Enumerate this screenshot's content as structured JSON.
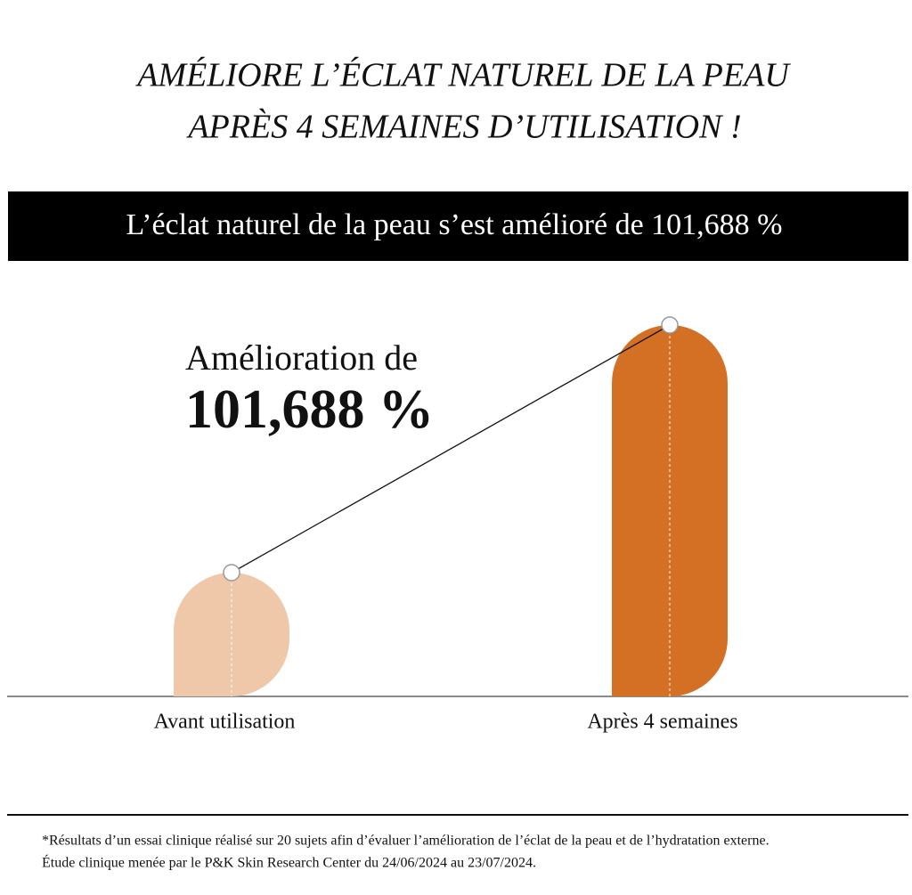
{
  "chart_data": {
    "type": "bar",
    "title": [
      "AMÉLIORE L’ÉCLAT NATUREL DE LA PEAU",
      "APRÈS 4 SEMAINES D’UTILISATION !"
    ],
    "subtitle": "L’éclat naturel de la peau s’est amélioré de 101,688 %",
    "annotation": [
      "Amélioration de",
      "101,688 %"
    ],
    "categories": [
      "Avant utilisation",
      "Après 4 semaines"
    ],
    "values": [
      1,
      3
    ],
    "colors": [
      "#efc7a9",
      "#d37024"
    ],
    "ylim": [
      0,
      3
    ],
    "footnote": [
      "*Résultats d’un essai clinique réalisé sur 20 sujets afin d’évaluer l’amélioration de l’éclat de la peau et de l’hydratation externe.",
      "Étude clinique menée par le P&K Skin Research Center du 24/06/2024 au 23/07/2024."
    ]
  }
}
